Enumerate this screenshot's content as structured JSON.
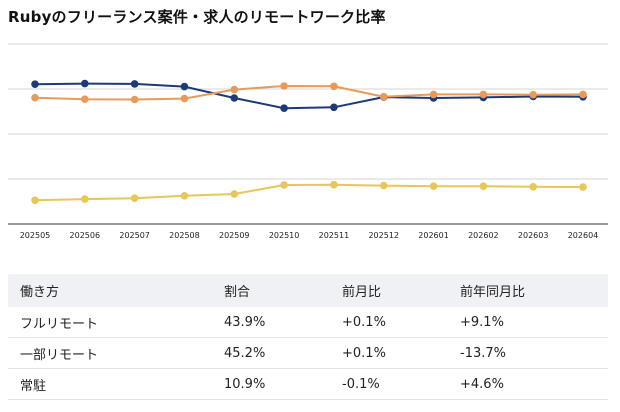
{
  "title": "Rubyのフリーランス案件・求人のリモートワーク比率",
  "chart_data": {
    "type": "line",
    "title": "Rubyのフリーランス案件・求人のリモートワーク比率",
    "categories": [
      "202505",
      "202506",
      "202507",
      "202508",
      "202509",
      "202510",
      "202511",
      "202512",
      "202601",
      "202602",
      "202603",
      "202604"
    ],
    "ylim": [
      0,
      60
    ],
    "grid": true,
    "series": [
      {
        "name": "フルリモート",
        "color": "#1d3a78",
        "values": [
          46.6,
          46.8,
          46.7,
          45.8,
          42.0,
          38.6,
          38.9,
          42.3,
          42.0,
          42.2,
          42.5,
          42.4
        ]
      },
      {
        "name": "一部リモート",
        "color": "#e89a5a",
        "values": [
          42.1,
          41.6,
          41.5,
          41.8,
          44.8,
          46.0,
          45.9,
          42.4,
          43.2,
          43.2,
          43.1,
          43.2
        ]
      },
      {
        "name": "常駐",
        "color": "#e8c657",
        "values": [
          7.9,
          8.3,
          8.6,
          9.4,
          10.0,
          13.0,
          13.1,
          12.8,
          12.6,
          12.6,
          12.4,
          12.3
        ]
      }
    ]
  },
  "table": {
    "headers": [
      "働き方",
      "割合",
      "前月比",
      "前年同月比"
    ],
    "rows": [
      [
        "フルリモート",
        "43.9%",
        "+0.1%",
        "+9.1%"
      ],
      [
        "一部リモート",
        "45.2%",
        "+0.1%",
        "-13.7%"
      ],
      [
        "常駐",
        "10.9%",
        "-0.1%",
        "+4.6%"
      ]
    ]
  }
}
